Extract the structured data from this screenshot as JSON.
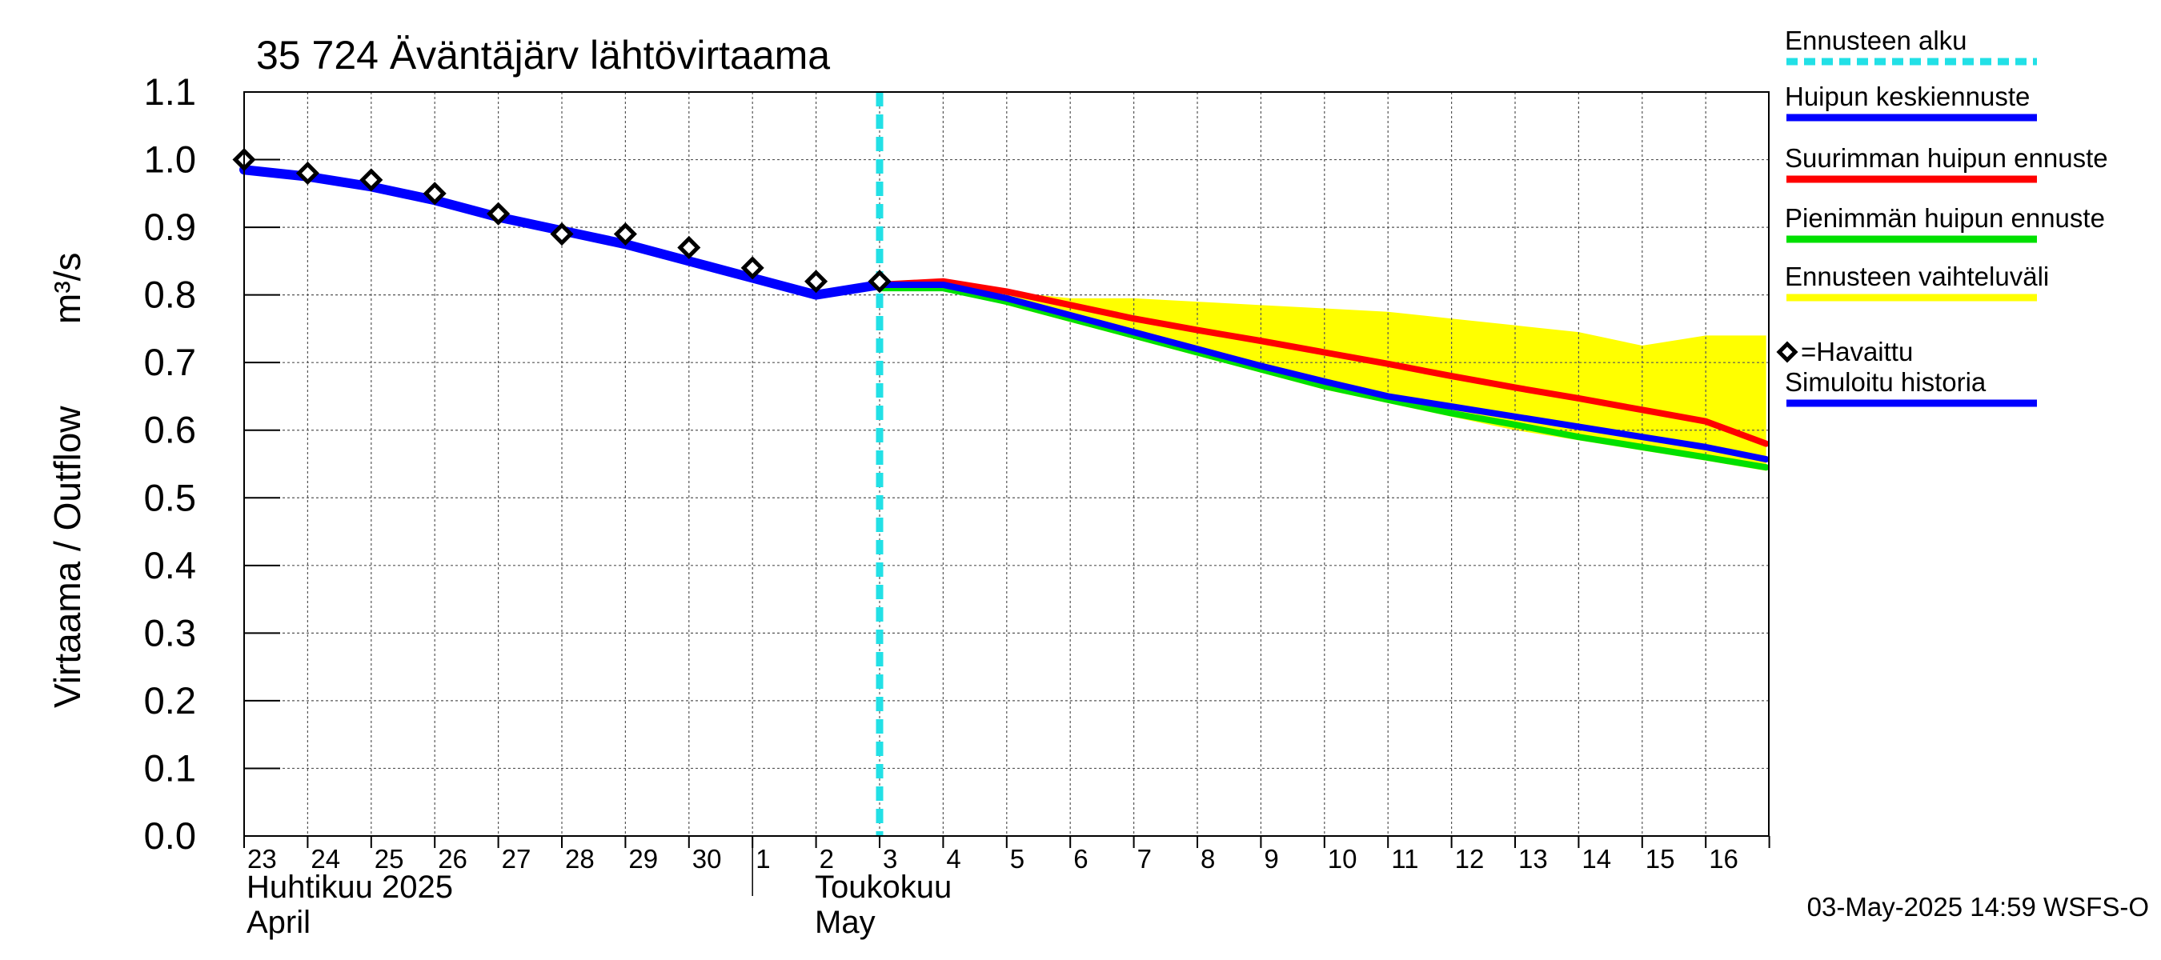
{
  "chart_data": {
    "type": "line",
    "title": "35 724 Äväntäjärv lähtövirtaama",
    "ylabel": "Virtaama / Outflow",
    "yunit": "m³/s",
    "ylim": [
      0.0,
      1.1
    ],
    "yticks": [
      "0.0",
      "0.1",
      "0.2",
      "0.3",
      "0.4",
      "0.5",
      "0.6",
      "0.7",
      "0.8",
      "0.9",
      "1.0",
      "1.1"
    ],
    "x_day_labels": [
      "23",
      "24",
      "25",
      "26",
      "27",
      "28",
      "29",
      "30",
      "1",
      "2",
      "3",
      "4",
      "5",
      "6",
      "7",
      "8",
      "9",
      "10",
      "11",
      "12",
      "13",
      "14",
      "15",
      "16"
    ],
    "month_labels": [
      {
        "fi": "Huhtikuu  2025",
        "en": "April"
      },
      {
        "fi": "Toukokuu",
        "en": "May"
      }
    ],
    "forecast_start_x": 10.0,
    "legend": [
      {
        "key": "forecast_start",
        "label": "Ennusteen alku",
        "color": "#22e0e6"
      },
      {
        "key": "mean",
        "label": "Huipun keskiennuste",
        "color": "#0000ff"
      },
      {
        "key": "max",
        "label": "Suurimman huipun ennuste",
        "color": "#ff0000"
      },
      {
        "key": "min",
        "label": "Pienimmän huipun ennuste",
        "color": "#00e000"
      },
      {
        "key": "range",
        "label": "Ennusteen vaihteluväli",
        "color": "#ffff00"
      },
      {
        "key": "observed",
        "label": "=Havaittu",
        "color": "#000000"
      },
      {
        "key": "history",
        "label": "Simuloitu historia",
        "color": "#0000ff"
      }
    ],
    "series": [
      {
        "name": "Simuloitu historia",
        "key": "history",
        "color": "#0000ff",
        "x": [
          0,
          1,
          2,
          3,
          4,
          5,
          6,
          7,
          8,
          9,
          10
        ],
        "values": [
          0.985,
          0.975,
          0.96,
          0.94,
          0.915,
          0.895,
          0.875,
          0.85,
          0.825,
          0.8,
          0.815
        ]
      },
      {
        "name": "Suurimman huipun ennuste",
        "key": "max",
        "color": "#ff0000",
        "x": [
          10,
          11,
          12,
          13,
          14,
          15,
          16,
          17,
          18,
          19,
          20,
          21,
          22,
          23,
          23.95
        ],
        "values": [
          0.815,
          0.82,
          0.805,
          0.785,
          0.765,
          0.748,
          0.732,
          0.715,
          0.698,
          0.68,
          0.663,
          0.647,
          0.63,
          0.613,
          0.58
        ]
      },
      {
        "name": "Pienimmän huipun ennuste",
        "key": "min",
        "color": "#00e000",
        "x": [
          10,
          11,
          12,
          13,
          14,
          15,
          16,
          17,
          18,
          19,
          20,
          21,
          22,
          23,
          23.95
        ],
        "values": [
          0.81,
          0.81,
          0.79,
          0.765,
          0.74,
          0.715,
          0.69,
          0.665,
          0.645,
          0.625,
          0.608,
          0.59,
          0.575,
          0.56,
          0.545
        ]
      },
      {
        "name": "Huipun keskiennuste",
        "key": "mean",
        "color": "#0000ff",
        "x": [
          10,
          11,
          12,
          13,
          14,
          15,
          16,
          17,
          18,
          19,
          20,
          21,
          22,
          23,
          23.95
        ],
        "values": [
          0.815,
          0.815,
          0.795,
          0.77,
          0.745,
          0.72,
          0.695,
          0.672,
          0.65,
          0.635,
          0.62,
          0.605,
          0.59,
          0.575,
          0.557
        ]
      },
      {
        "name": "Havaittu",
        "key": "observed",
        "color": "#000000",
        "x": [
          0,
          1,
          2,
          3,
          4,
          5,
          6,
          7,
          8,
          9,
          10
        ],
        "values": [
          1.0,
          0.98,
          0.97,
          0.95,
          0.92,
          0.89,
          0.89,
          0.87,
          0.84,
          0.82,
          0.82
        ]
      }
    ],
    "range_band": {
      "x": [
        10,
        11,
        12,
        13,
        14,
        15,
        16,
        17,
        18,
        19,
        20,
        21,
        22,
        23,
        23.95
      ],
      "upper": [
        0.82,
        0.82,
        0.805,
        0.795,
        0.795,
        0.79,
        0.785,
        0.78,
        0.775,
        0.765,
        0.755,
        0.745,
        0.725,
        0.74,
        0.74
      ],
      "lower": [
        0.81,
        0.81,
        0.785,
        0.76,
        0.735,
        0.71,
        0.685,
        0.66,
        0.64,
        0.62,
        0.6,
        0.585,
        0.57,
        0.555,
        0.54
      ]
    }
  },
  "footer": "03-May-2025 14:59 WSFS-O"
}
